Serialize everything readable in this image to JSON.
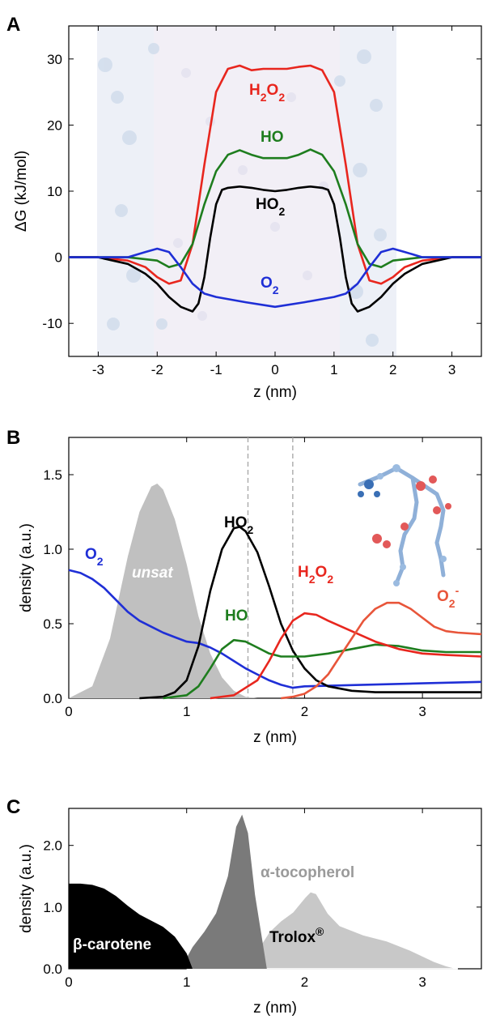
{
  "colors": {
    "H2O2": "#e8261e",
    "HO": "#1e7d1e",
    "HO2": "#000000",
    "O2": "#1f2fd6",
    "O2minus": "#e8553a",
    "unsat": "#c0c0c0",
    "bcarotene": "#000000",
    "atocopherol": "#7a7a7a",
    "trolox": "#c8c8c8"
  },
  "chart_data": [
    {
      "panel": "A",
      "type": "line",
      "xlabel": "z (nm)",
      "ylabel": "ΔG (kJ/mol)",
      "xlim": [
        -3.5,
        3.5
      ],
      "ylim": [
        -15,
        35
      ],
      "xticks": [
        "-3",
        "-2",
        "-1",
        "0",
        "1",
        "2",
        "3"
      ],
      "yticks": [
        "-10",
        "0",
        "10",
        "20",
        "30"
      ],
      "series": [
        {
          "name": "H2O2",
          "label": "H",
          "label_sub1": "2",
          "label_mid": "O",
          "label_sub2": "2",
          "x": [
            -3.5,
            -3.0,
            -2.5,
            -2.2,
            -2.0,
            -1.8,
            -1.6,
            -1.4,
            -1.2,
            -1.0,
            -0.8,
            -0.6,
            -0.4,
            -0.2,
            0.0,
            0.2,
            0.4,
            0.6,
            0.8,
            1.0,
            1.2,
            1.4,
            1.6,
            1.8,
            2.0,
            2.2,
            2.5,
            3.0,
            3.5
          ],
          "y": [
            0,
            0,
            -0.5,
            -1.5,
            -3,
            -4,
            -3.5,
            2,
            14,
            25,
            28.5,
            29,
            28.3,
            28.5,
            28.5,
            28.5,
            28.8,
            29,
            28.3,
            25,
            14,
            2,
            -3.5,
            -4,
            -3,
            -1.5,
            -0.5,
            0,
            0
          ]
        },
        {
          "name": "HO",
          "label": "HO",
          "x": [
            -3.5,
            -3.0,
            -2.5,
            -2.0,
            -1.8,
            -1.6,
            -1.4,
            -1.2,
            -1.0,
            -0.8,
            -0.6,
            -0.4,
            -0.2,
            0.0,
            0.2,
            0.4,
            0.6,
            0.8,
            1.0,
            1.2,
            1.4,
            1.6,
            1.8,
            2.0,
            2.5,
            3.0,
            3.5
          ],
          "y": [
            0,
            0,
            0,
            -0.5,
            -1.5,
            -1,
            2,
            8,
            13,
            15.5,
            16.2,
            15.5,
            15,
            15,
            15,
            15.5,
            16.3,
            15.5,
            13,
            8,
            2,
            -1,
            -1.5,
            -0.5,
            0,
            0,
            0
          ]
        },
        {
          "name": "HO2",
          "label": "HO",
          "label_sub1": "2",
          "x": [
            -3.5,
            -3.0,
            -2.5,
            -2.2,
            -2.0,
            -1.8,
            -1.6,
            -1.4,
            -1.3,
            -1.2,
            -1.1,
            -1.0,
            -0.9,
            -0.8,
            -0.6,
            -0.4,
            -0.2,
            0.0,
            0.2,
            0.4,
            0.6,
            0.8,
            0.9,
            1.0,
            1.1,
            1.2,
            1.3,
            1.4,
            1.6,
            1.8,
            2.0,
            2.2,
            2.5,
            3.0,
            3.5
          ],
          "y": [
            0,
            0,
            -1,
            -2.5,
            -4,
            -6,
            -7.5,
            -8.2,
            -7,
            -3,
            3,
            8,
            10.2,
            10.5,
            10.7,
            10.5,
            10.2,
            10,
            10.2,
            10.5,
            10.7,
            10.5,
            10.2,
            8,
            3,
            -3,
            -7,
            -8.2,
            -7.5,
            -6,
            -4,
            -2.5,
            -1,
            0,
            0
          ]
        },
        {
          "name": "O2",
          "label": "O",
          "label_sub1": "2",
          "x": [
            -3.5,
            -3.0,
            -2.5,
            -2.2,
            -2.0,
            -1.8,
            -1.6,
            -1.4,
            -1.2,
            -1.0,
            -0.5,
            0.0,
            0.5,
            1.0,
            1.2,
            1.4,
            1.6,
            1.8,
            2.0,
            2.2,
            2.5,
            3.0,
            3.5
          ],
          "y": [
            0,
            0,
            0,
            0.8,
            1.3,
            0.8,
            -1.5,
            -4,
            -5.5,
            -6,
            -6.8,
            -7.5,
            -6.8,
            -6,
            -5.5,
            -4,
            -1.5,
            0.8,
            1.3,
            0.8,
            0,
            0,
            0
          ]
        }
      ]
    },
    {
      "panel": "B",
      "type": "line",
      "xlabel": "z (nm)",
      "ylabel": "density (a.u.)",
      "xlim": [
        0,
        3.5
      ],
      "ylim": [
        0,
        1.75
      ],
      "xticks": [
        "0",
        "1",
        "2",
        "3"
      ],
      "yticks": [
        "0.0",
        "0.5",
        "1.0",
        "1.5"
      ],
      "vlines": [
        1.52,
        1.9
      ],
      "series": [
        {
          "name": "unsat",
          "label": "unsat",
          "style": "filled",
          "x": [
            0.0,
            0.2,
            0.35,
            0.5,
            0.6,
            0.7,
            0.75,
            0.8,
            0.9,
            1.0,
            1.1,
            1.2,
            1.3,
            1.4,
            1.5,
            1.6
          ],
          "y": [
            0,
            0.08,
            0.4,
            0.95,
            1.25,
            1.42,
            1.44,
            1.4,
            1.2,
            0.9,
            0.55,
            0.3,
            0.14,
            0.05,
            0.01,
            0
          ]
        },
        {
          "name": "O2",
          "label": "O",
          "label_sub1": "2",
          "x": [
            0.0,
            0.1,
            0.2,
            0.3,
            0.4,
            0.5,
            0.6,
            0.7,
            0.8,
            0.9,
            1.0,
            1.1,
            1.2,
            1.3,
            1.4,
            1.5,
            1.6,
            1.7,
            1.8,
            1.9,
            2.0,
            2.5,
            3.0,
            3.5
          ],
          "y": [
            0.86,
            0.84,
            0.8,
            0.74,
            0.66,
            0.58,
            0.52,
            0.48,
            0.44,
            0.41,
            0.38,
            0.37,
            0.34,
            0.3,
            0.25,
            0.2,
            0.16,
            0.12,
            0.09,
            0.07,
            0.08,
            0.09,
            0.1,
            0.11
          ]
        },
        {
          "name": "HO2",
          "label": "HO",
          "label_sub1": "2",
          "x": [
            0.6,
            0.8,
            0.9,
            1.0,
            1.1,
            1.2,
            1.3,
            1.4,
            1.45,
            1.5,
            1.6,
            1.7,
            1.8,
            1.9,
            2.0,
            2.1,
            2.2,
            2.4,
            2.6,
            3.0,
            3.5
          ],
          "y": [
            0,
            0.01,
            0.04,
            0.12,
            0.35,
            0.72,
            1.0,
            1.14,
            1.15,
            1.12,
            0.98,
            0.75,
            0.5,
            0.32,
            0.2,
            0.12,
            0.08,
            0.05,
            0.04,
            0.04,
            0.04
          ]
        },
        {
          "name": "HO",
          "label": "HO",
          "x": [
            0.8,
            1.0,
            1.1,
            1.2,
            1.3,
            1.4,
            1.5,
            1.6,
            1.7,
            1.8,
            2.0,
            2.2,
            2.4,
            2.6,
            2.8,
            3.0,
            3.2,
            3.5
          ],
          "y": [
            0,
            0.02,
            0.08,
            0.2,
            0.33,
            0.39,
            0.38,
            0.34,
            0.3,
            0.28,
            0.28,
            0.3,
            0.33,
            0.36,
            0.35,
            0.32,
            0.31,
            0.31
          ]
        },
        {
          "name": "H2O2",
          "label": "H",
          "label_sub1": "2",
          "label_mid": "O",
          "label_sub2": "2",
          "x": [
            1.2,
            1.4,
            1.6,
            1.7,
            1.8,
            1.9,
            2.0,
            2.1,
            2.2,
            2.4,
            2.6,
            2.8,
            3.0,
            3.2,
            3.5
          ],
          "y": [
            0,
            0.02,
            0.12,
            0.25,
            0.4,
            0.52,
            0.57,
            0.56,
            0.52,
            0.45,
            0.38,
            0.33,
            0.3,
            0.29,
            0.28
          ]
        },
        {
          "name": "O2minus",
          "label": "O",
          "label_sub1": "2",
          "label_sup": "-",
          "x": [
            1.8,
            1.9,
            2.0,
            2.1,
            2.2,
            2.3,
            2.4,
            2.5,
            2.6,
            2.7,
            2.8,
            2.9,
            3.0,
            3.1,
            3.2,
            3.3,
            3.5
          ],
          "y": [
            0,
            0.01,
            0.03,
            0.08,
            0.16,
            0.28,
            0.4,
            0.52,
            0.6,
            0.64,
            0.64,
            0.6,
            0.54,
            0.48,
            0.45,
            0.44,
            0.43
          ]
        }
      ]
    },
    {
      "panel": "C",
      "type": "area",
      "xlabel": "z (nm)",
      "ylabel": "density (a.u.)",
      "xlim": [
        0,
        3.5
      ],
      "ylim": [
        0,
        2.6
      ],
      "xticks": [
        "0",
        "1",
        "2",
        "3"
      ],
      "yticks": [
        "0.0",
        "1.0",
        "2.0"
      ],
      "series": [
        {
          "name": "bcarotene",
          "label": "β-carotene",
          "x": [
            0.0,
            0.1,
            0.2,
            0.3,
            0.4,
            0.5,
            0.6,
            0.7,
            0.8,
            0.9,
            1.0,
            1.05
          ],
          "y": [
            1.38,
            1.38,
            1.36,
            1.3,
            1.18,
            1.02,
            0.88,
            0.78,
            0.68,
            0.52,
            0.25,
            0
          ]
        },
        {
          "name": "atocopherol",
          "label": "α-tocopherol",
          "x": [
            0.95,
            1.05,
            1.15,
            1.25,
            1.35,
            1.42,
            1.47,
            1.52,
            1.58,
            1.63,
            1.68
          ],
          "y": [
            0,
            0.35,
            0.6,
            0.9,
            1.5,
            2.3,
            2.5,
            2.2,
            1.2,
            0.6,
            0
          ]
        },
        {
          "name": "trolox",
          "label": "Trolox",
          "label_sup": "®",
          "x": [
            1.0,
            1.2,
            1.4,
            1.6,
            1.7,
            1.8,
            1.9,
            2.0,
            2.05,
            2.1,
            2.2,
            2.3,
            2.5,
            2.7,
            2.9,
            3.1,
            3.2,
            3.3
          ],
          "y": [
            0,
            0.03,
            0.12,
            0.3,
            0.6,
            0.78,
            0.92,
            1.15,
            1.25,
            1.22,
            0.9,
            0.7,
            0.55,
            0.45,
            0.3,
            0.12,
            0.05,
            0
          ]
        }
      ]
    }
  ]
}
